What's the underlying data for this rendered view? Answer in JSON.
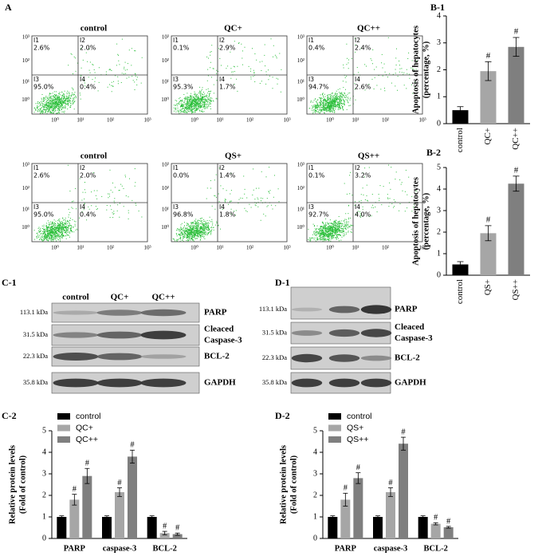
{
  "panels": {
    "A": "A",
    "C1": "C-1",
    "D1": "D-1"
  },
  "flow": {
    "ticks": [
      "10⁰",
      "10¹",
      "10²",
      "10³"
    ],
    "panels": [
      {
        "title": "control",
        "quadrants": [
          {
            "id": "I1",
            "pct": "2.6%"
          },
          {
            "id": "I2",
            "pct": "2.0%"
          },
          {
            "id": "I3",
            "pct": "95.0%"
          },
          {
            "id": "I4",
            "pct": "0.4%"
          }
        ]
      },
      {
        "title": "QC+",
        "quadrants": [
          {
            "id": "I1",
            "pct": "0.1%"
          },
          {
            "id": "I2",
            "pct": "2.9%"
          },
          {
            "id": "I3",
            "pct": "95.3%"
          },
          {
            "id": "I4",
            "pct": "1.7%"
          }
        ]
      },
      {
        "title": "QC++",
        "quadrants": [
          {
            "id": "I1",
            "pct": "0.4%"
          },
          {
            "id": "I2",
            "pct": "2.4%"
          },
          {
            "id": "I3",
            "pct": "94.7%"
          },
          {
            "id": "I4",
            "pct": "2.6%"
          }
        ]
      },
      {
        "title": "control",
        "quadrants": [
          {
            "id": "I1",
            "pct": "2.6%"
          },
          {
            "id": "I2",
            "pct": "2.0%"
          },
          {
            "id": "I3",
            "pct": "95.0%"
          },
          {
            "id": "I4",
            "pct": "0.4%"
          }
        ]
      },
      {
        "title": "QS+",
        "quadrants": [
          {
            "id": "I1",
            "pct": "0.0%"
          },
          {
            "id": "I2",
            "pct": "1.4%"
          },
          {
            "id": "I3",
            "pct": "96.8%"
          },
          {
            "id": "I4",
            "pct": "1.8%"
          }
        ]
      },
      {
        "title": "QS++",
        "quadrants": [
          {
            "id": "I1",
            "pct": "0.1%"
          },
          {
            "id": "I2",
            "pct": "3.2%"
          },
          {
            "id": "I3",
            "pct": "92.7%"
          },
          {
            "id": "I4",
            "pct": "4.0%"
          }
        ]
      }
    ]
  },
  "blots": [
    {
      "lanes": [
        "control",
        "QC+",
        "QC++"
      ],
      "rows": [
        {
          "mw": "113.1 kDa",
          "protein": [
            "PARP"
          ]
        },
        {
          "mw": "31.5 kDa",
          "protein": [
            "Cleaced",
            "Caspase-3"
          ]
        },
        {
          "mw": "22.3 kDa",
          "protein": [
            "BCL-2"
          ]
        },
        {
          "mw": "35.8 kDa",
          "protein": [
            "GAPDH"
          ]
        }
      ]
    },
    {
      "lanes": [
        "control",
        "QS+",
        "QS++"
      ],
      "rows": [
        {
          "mw": "113.1 kDa",
          "protein": [
            "PARP"
          ]
        },
        {
          "mw": "31.5 kDa",
          "protein": [
            "Cleaced",
            "Caspase-3"
          ]
        },
        {
          "mw": "22.3 kDa",
          "protein": [
            "BCL-2"
          ]
        },
        {
          "mw": "35.8 kDa",
          "protein": [
            "GAPDH"
          ]
        }
      ]
    }
  ],
  "chart_data": [
    {
      "type": "bar",
      "title": "B-1",
      "ylabel": [
        "Apoptosis of hepatocytes",
        "(percentage, %)"
      ],
      "categories": [
        "control",
        "QC+",
        "QC++"
      ],
      "values": [
        0.5,
        1.95,
        2.85
      ],
      "errors": [
        0.13,
        0.35,
        0.35
      ],
      "colors": [
        "#000000",
        "#a6a6a6",
        "#7f7f7f"
      ],
      "ylim": [
        0,
        4
      ],
      "yticks": [
        0,
        1,
        2,
        3,
        4
      ],
      "sig_label": "#",
      "significant": [
        false,
        true,
        true
      ]
    },
    {
      "type": "bar",
      "title": "B-2",
      "ylabel": [
        "Apoptosis of hepatocytes",
        "(percentage, %)"
      ],
      "categories": [
        "control",
        "QS+",
        "QS++"
      ],
      "values": [
        0.5,
        1.95,
        4.25
      ],
      "errors": [
        0.13,
        0.35,
        0.35
      ],
      "colors": [
        "#000000",
        "#a6a6a6",
        "#7f7f7f"
      ],
      "ylim": [
        0,
        5
      ],
      "yticks": [
        0,
        1,
        2,
        3,
        4,
        5
      ],
      "sig_label": "#",
      "significant": [
        false,
        true,
        true
      ]
    },
    {
      "type": "grouped_bar",
      "title": "C-2",
      "ylabel": [
        "Relative protein levels",
        "(Fold of control)"
      ],
      "categories": [
        "PARP",
        "caspase-3",
        "BCL-2"
      ],
      "series": [
        {
          "name": "control",
          "color": "#000000",
          "values": [
            1,
            1,
            1
          ],
          "errors": [
            0.05,
            0.05,
            0.05
          ],
          "significant": [
            false,
            false,
            false
          ]
        },
        {
          "name": "QC+",
          "color": "#a6a6a6",
          "values": [
            1.8,
            2.15,
            0.25
          ],
          "errors": [
            0.25,
            0.2,
            0.08
          ],
          "significant": [
            true,
            true,
            true
          ]
        },
        {
          "name": "QC++",
          "color": "#7f7f7f",
          "values": [
            2.9,
            3.8,
            0.2
          ],
          "errors": [
            0.35,
            0.3,
            0.05
          ],
          "significant": [
            true,
            true,
            true
          ]
        }
      ],
      "ylim": [
        0,
        5
      ],
      "yticks": [
        0,
        1,
        2,
        3,
        4,
        5
      ],
      "sig_label": "#",
      "legend": "top-left"
    },
    {
      "type": "grouped_bar",
      "title": "D-2",
      "ylabel": [
        "Relative protein levels",
        "(Fold of control)"
      ],
      "categories": [
        "PARP",
        "caspase-3",
        "BCL-2"
      ],
      "series": [
        {
          "name": "control",
          "color": "#000000",
          "values": [
            1,
            1,
            1
          ],
          "errors": [
            0.05,
            0.05,
            0.05
          ],
          "significant": [
            false,
            false,
            false
          ]
        },
        {
          "name": "QS+",
          "color": "#a6a6a6",
          "values": [
            1.8,
            2.15,
            0.68
          ],
          "errors": [
            0.3,
            0.2,
            0.05
          ],
          "significant": [
            true,
            true,
            true
          ]
        },
        {
          "name": "QS++",
          "color": "#7f7f7f",
          "values": [
            2.8,
            4.4,
            0.52
          ],
          "errors": [
            0.25,
            0.3,
            0.04
          ],
          "significant": [
            true,
            true,
            true
          ]
        }
      ],
      "ylim": [
        0,
        5
      ],
      "yticks": [
        0,
        1,
        2,
        3,
        4,
        5
      ],
      "sig_label": "#",
      "legend": "top-left"
    }
  ]
}
